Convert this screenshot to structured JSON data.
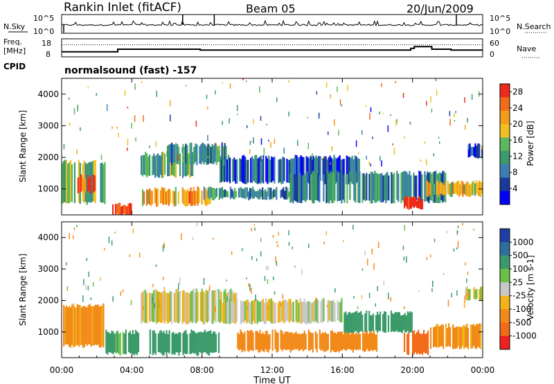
{
  "header": {
    "station": "Rankin Inlet (fitACF)",
    "beam": "Beam 05",
    "date": "20/Jun/2009"
  },
  "side_labels": {
    "nsky": "N.Sky",
    "nsearch": "N.Search",
    "freq_line1": "Freq.",
    "freq_line2": "[MHz]",
    "nave": "Nave",
    "cpid": "CPID",
    "cpid_value": "normalsound (fast) -157"
  },
  "noise_axis": {
    "left_ticks": [
      "10^5",
      "10^0"
    ],
    "right_ticks": [
      "10^5",
      "10^0"
    ]
  },
  "freq_axis": {
    "left_ticks": [
      "18",
      "8"
    ],
    "right_ticks": [
      "60",
      "0"
    ]
  },
  "colors": {
    "power_scale": [
      "#0000ff",
      "#1a3a9a",
      "#3b7fb0",
      "#3a9a6a",
      "#5cb85c",
      "#f0c020",
      "#f59b1a",
      "#f26b1a",
      "#ee2a1a"
    ],
    "velocity_scale": [
      "#1f3fa8",
      "#2d6f9a",
      "#3a9a6a",
      "#6cc04a",
      "#c8c8c8",
      "#f2b21a",
      "#f28a1a",
      "#f26b1a",
      "#ee2020"
    ]
  },
  "chart_data": [
    {
      "type": "line",
      "panel": "noise",
      "series": [
        {
          "name": "N.Sky",
          "style": "solid"
        },
        {
          "name": "N.Search",
          "style": "dotted"
        }
      ],
      "x": [
        "00:00",
        "04:00",
        "08:00",
        "12:00",
        "16:00",
        "20:00",
        "00:00"
      ]
    },
    {
      "type": "line",
      "panel": "frequency",
      "series": [
        {
          "name": "Freq. [MHz]",
          "style": "solid",
          "x_hours": [
            0,
            3,
            3.2,
            7.9,
            8.5,
            13.2,
            17.6,
            19.9,
            20.1,
            21.1,
            22.2,
            24
          ],
          "values": [
            10.5,
            10.5,
            12,
            11.5,
            11.5,
            11.5,
            11.5,
            12.5,
            13.5,
            12,
            11.5,
            11.5
          ]
        },
        {
          "name": "Nave",
          "style": "dotted",
          "x_hours": [
            0,
            24
          ],
          "values": [
            40,
            40
          ]
        }
      ]
    },
    {
      "type": "heatmap",
      "panel": "power",
      "ylabel": "Slant Range [km]",
      "xlabel": "Time UT",
      "x_ticks": [
        "00:00",
        "04:00",
        "08:00",
        "12:00",
        "16:00",
        "20:00",
        "00:00"
      ],
      "y_ticks": [
        1000,
        2000,
        3000,
        4000
      ],
      "ylim": [
        180,
        4500
      ],
      "xlim_hours": [
        0,
        24
      ],
      "colorbar": {
        "label": "Power [dB]",
        "ticks": [
          4,
          8,
          12,
          16,
          20,
          24,
          28
        ],
        "range": [
          0,
          30
        ]
      },
      "bands": [
        {
          "t0": 0.0,
          "t1": 2.5,
          "r0": 550,
          "r1": 1850,
          "level": 14
        },
        {
          "t0": 0.9,
          "t1": 2.0,
          "r0": 900,
          "r1": 1400,
          "level": 27
        },
        {
          "t0": 2.8,
          "t1": 4.0,
          "r0": 180,
          "r1": 520,
          "level": 27
        },
        {
          "t0": 4.5,
          "t1": 7.5,
          "r0": 1400,
          "r1": 2100,
          "level": 13
        },
        {
          "t0": 6.0,
          "t1": 9.5,
          "r0": 1800,
          "r1": 2400,
          "level": 10
        },
        {
          "t0": 4.5,
          "t1": 8.5,
          "r0": 500,
          "r1": 1000,
          "level": 21
        },
        {
          "t0": 8.0,
          "t1": 13.0,
          "r0": 700,
          "r1": 1000,
          "level": 10
        },
        {
          "t0": 9.0,
          "t1": 17.0,
          "r0": 1200,
          "r1": 2000,
          "level": 6
        },
        {
          "t0": 13.0,
          "t1": 22.0,
          "r0": 600,
          "r1": 1500,
          "level": 9
        },
        {
          "t0": 19.5,
          "t1": 20.6,
          "r0": 400,
          "r1": 700,
          "level": 28
        },
        {
          "t0": 20.8,
          "t1": 24.0,
          "r0": 800,
          "r1": 1200,
          "level": 18
        },
        {
          "t0": 23.0,
          "t1": 24.0,
          "r0": 2000,
          "r1": 2400,
          "level": 5
        }
      ]
    },
    {
      "type": "heatmap",
      "panel": "velocity",
      "ylabel": "Slant Range [km]",
      "xlabel": "Time UT",
      "x_ticks": [
        "00:00",
        "04:00",
        "08:00",
        "12:00",
        "16:00",
        "20:00",
        "00:00"
      ],
      "y_ticks": [
        1000,
        2000,
        3000,
        4000
      ],
      "ylim": [
        180,
        4500
      ],
      "xlim_hours": [
        0,
        24
      ],
      "colorbar": {
        "label": "Velocity [m s-1]",
        "ticks": [
          1000,
          500,
          100,
          25,
          -25,
          -100,
          -500,
          -1000
        ]
      },
      "bands": [
        {
          "t0": 0.0,
          "t1": 2.5,
          "r0": 550,
          "r1": 1850,
          "class": -100
        },
        {
          "t0": 2.5,
          "t1": 4.5,
          "r0": 300,
          "r1": 1000,
          "class": 100
        },
        {
          "t0": 4.5,
          "t1": 10.0,
          "r0": 1300,
          "r1": 2300,
          "class": 0
        },
        {
          "t0": 5.0,
          "t1": 9.0,
          "r0": 300,
          "r1": 1000,
          "class": 200
        },
        {
          "t0": 9.0,
          "t1": 16.0,
          "r0": 1300,
          "r1": 2000,
          "class": 0
        },
        {
          "t0": 10.0,
          "t1": 18.0,
          "r0": 400,
          "r1": 1000,
          "class": -150
        },
        {
          "t0": 16.0,
          "t1": 20.0,
          "r0": 1000,
          "r1": 1600,
          "class": 150
        },
        {
          "t0": 19.5,
          "t1": 21.0,
          "r0": 300,
          "r1": 1000,
          "class": -500
        },
        {
          "t0": 21.0,
          "t1": 24.0,
          "r0": 500,
          "r1": 1200,
          "class": -100
        },
        {
          "t0": 23.0,
          "t1": 24.0,
          "r0": 2000,
          "r1": 2400,
          "class": 0
        }
      ]
    }
  ]
}
